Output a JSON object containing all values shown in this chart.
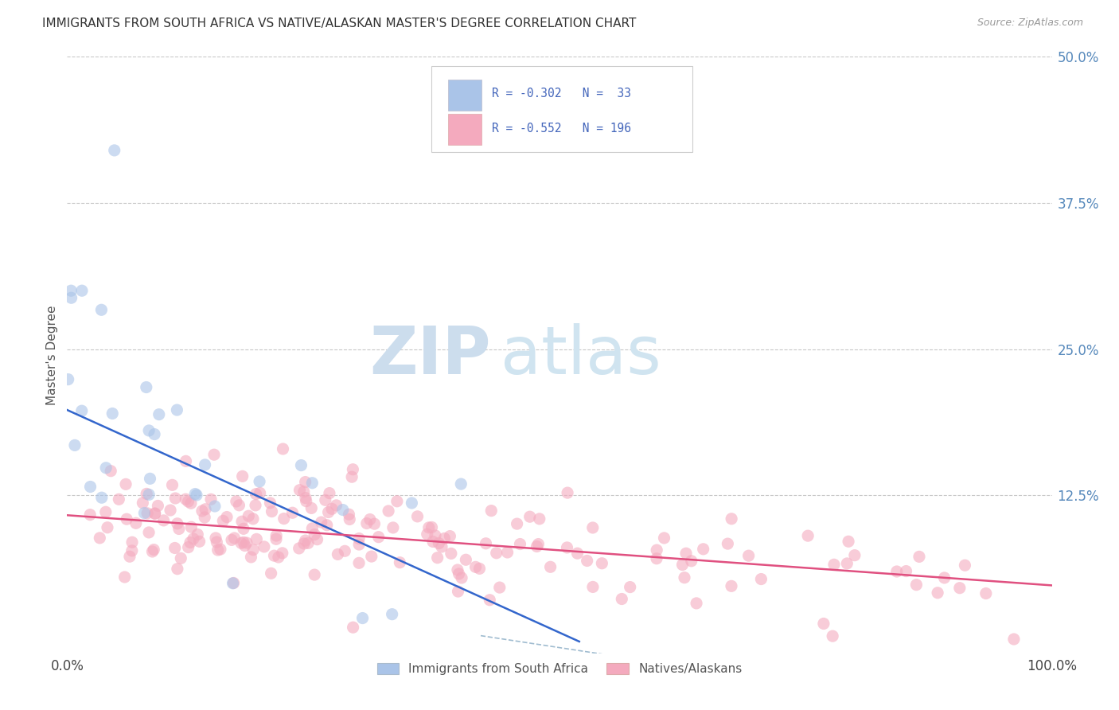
{
  "title": "IMMIGRANTS FROM SOUTH AFRICA VS NATIVE/ALASKAN MASTER'S DEGREE CORRELATION CHART",
  "source": "Source: ZipAtlas.com",
  "ylabel": "Master's Degree",
  "xlim": [
    0,
    1.0
  ],
  "ylim": [
    0,
    0.5
  ],
  "xtick_labels": [
    "0.0%",
    "100.0%"
  ],
  "ytick_labels": [
    "12.5%",
    "25.0%",
    "37.5%",
    "50.0%"
  ],
  "ytick_positions": [
    0.125,
    0.25,
    0.375,
    0.5
  ],
  "grid_color": "#c8c8c8",
  "background_color": "#ffffff",
  "blue_R": -0.302,
  "blue_N": 33,
  "pink_R": -0.552,
  "pink_N": 196,
  "blue_color": "#aac4e8",
  "pink_color": "#f4aabe",
  "blue_line_color": "#3366cc",
  "pink_line_color": "#e05080",
  "dashed_line_color": "#a0bcd0",
  "watermark_zip": "ZIP",
  "watermark_atlas": "atlas",
  "watermark_color": "#ccdded",
  "blue_line_x": [
    0.0,
    0.52
  ],
  "blue_line_y": [
    0.198,
    0.0
  ],
  "pink_line_x": [
    0.0,
    1.0
  ],
  "pink_line_y": [
    0.108,
    0.048
  ],
  "dashed_line_x": [
    0.42,
    0.6
  ],
  "dashed_line_y": [
    0.005,
    -0.018
  ]
}
